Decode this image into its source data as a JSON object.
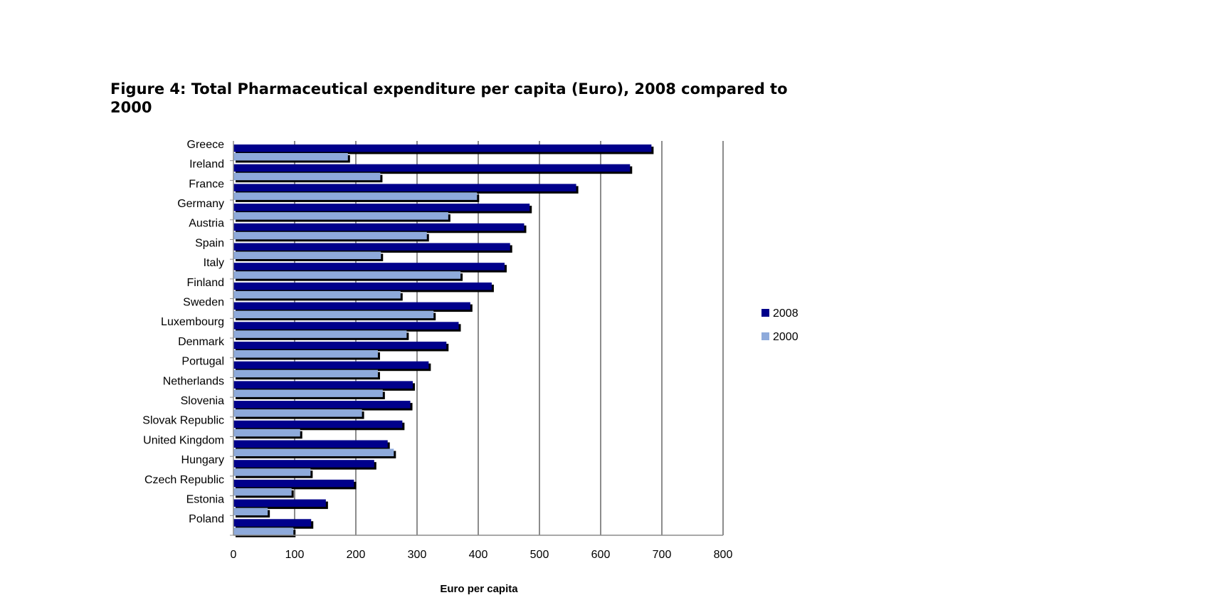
{
  "figure": {
    "title": "Figure 4: Total Pharmaceutical expenditure per capita (Euro), 2008 compared to 2000"
  },
  "chart_data": {
    "type": "bar",
    "orientation": "horizontal",
    "title": "",
    "xlabel": "Euro per capita",
    "ylabel": "",
    "xlim": [
      0,
      800
    ],
    "xticks": [
      0,
      100,
      200,
      300,
      400,
      500,
      600,
      700,
      800
    ],
    "grid": true,
    "legend": "right",
    "categories": [
      "Greece",
      "Ireland",
      "France",
      "Germany",
      "Austria",
      "Spain",
      "Italy",
      "Finland",
      "Sweden",
      "Luxembourg",
      "Denmark",
      "Portugal",
      "Netherlands",
      "Slovenia",
      "Slovak Republic",
      "United Kingdom",
      "Hungary",
      "Czech Republic",
      "Estonia",
      "Poland"
    ],
    "series": [
      {
        "name": "2008",
        "color": "#00008b",
        "values": [
          683,
          648,
          560,
          484,
          475,
          452,
          443,
          422,
          387,
          368,
          348,
          319,
          293,
          289,
          276,
          252,
          230,
          197,
          151,
          127
        ]
      },
      {
        "name": "2000",
        "color": "#8eaadb",
        "values": [
          187,
          240,
          398,
          351,
          316,
          241,
          371,
          273,
          327,
          283,
          236,
          236,
          244,
          210,
          109,
          262,
          126,
          95,
          56,
          98
        ]
      }
    ]
  }
}
